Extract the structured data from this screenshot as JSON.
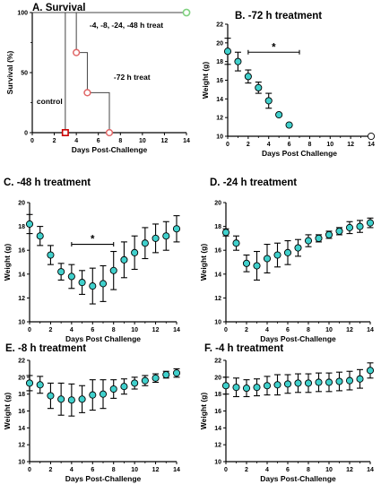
{
  "chart_data": [
    {
      "id": "A",
      "type": "line",
      "title": "A. Survival",
      "xlabel": "Days Post-Challenge",
      "ylabel": "Survival (%)",
      "xlim": [
        0,
        14
      ],
      "ylim": [
        0,
        100
      ],
      "xticks": [
        0,
        2,
        4,
        6,
        8,
        10,
        12,
        14
      ],
      "yticks": [
        0,
        50,
        100
      ],
      "series": [
        {
          "name": "-4, -8, -24, -48 h treat",
          "color": "#7fd17f",
          "x": [
            0,
            14
          ],
          "y": [
            100,
            100
          ]
        },
        {
          "name": "-72 h treat",
          "color": "#e06666",
          "x": [
            0,
            4,
            5,
            7
          ],
          "y": [
            100,
            66.7,
            33.3,
            0
          ]
        },
        {
          "name": "control",
          "color": "#cc0000",
          "x": [
            0,
            3
          ],
          "y": [
            100,
            0
          ]
        }
      ]
    },
    {
      "id": "B",
      "type": "scatter",
      "title": "B. -72 h treatment",
      "xlabel": "Days Post  Challenge",
      "ylabel": "Weight (g)",
      "xlim": [
        0,
        14
      ],
      "ylim": [
        10,
        22
      ],
      "xticks": [
        0,
        2,
        4,
        6,
        8,
        10,
        12,
        14
      ],
      "yticks": [
        10,
        12,
        14,
        16,
        18,
        20,
        22
      ],
      "x": [
        0,
        1,
        2,
        3,
        4,
        5,
        6,
        14
      ],
      "y": [
        19.1,
        18.0,
        16.4,
        15.2,
        13.8,
        12.3,
        11.2,
        10.0
      ],
      "err": [
        1.4,
        1.0,
        0.7,
        0.6,
        0.8,
        0,
        0,
        0
      ],
      "significance": {
        "label": "*",
        "x": [
          2,
          7
        ],
        "y": 19
      }
    },
    {
      "id": "C",
      "type": "scatter",
      "title": "C. -48 h treatment",
      "xlabel": "Days Post Challenge",
      "ylabel": "Weight (g)",
      "xlim": [
        0,
        14
      ],
      "ylim": [
        10,
        20
      ],
      "xticks": [
        0,
        2,
        4,
        6,
        8,
        10,
        12,
        14
      ],
      "yticks": [
        10,
        12,
        14,
        16,
        18,
        20
      ],
      "x": [
        0,
        1,
        2,
        3,
        4,
        5,
        6,
        7,
        8,
        9,
        10,
        11,
        12,
        13,
        14
      ],
      "y": [
        18.2,
        17.2,
        15.6,
        14.2,
        13.8,
        13.3,
        13.0,
        13.2,
        14.3,
        15.2,
        15.8,
        16.6,
        17.0,
        17.2,
        17.8
      ],
      "err": [
        0.8,
        0.8,
        0.8,
        0.7,
        1.0,
        1.0,
        1.5,
        1.5,
        1.6,
        1.5,
        1.4,
        1.3,
        1.2,
        1.2,
        1.1
      ],
      "significance": {
        "label": "*",
        "x": [
          4,
          8
        ],
        "y": 16.5
      }
    },
    {
      "id": "D",
      "type": "scatter",
      "title": "D. -24 h treatment",
      "xlabel": "Days Post-Challenge",
      "ylabel": "Weight (g)",
      "xlim": [
        0,
        14
      ],
      "ylim": [
        10,
        20
      ],
      "xticks": [
        0,
        2,
        4,
        6,
        8,
        10,
        12,
        14
      ],
      "yticks": [
        10,
        12,
        14,
        16,
        18,
        20
      ],
      "x": [
        0,
        1,
        2,
        3,
        4,
        5,
        6,
        7,
        8,
        9,
        10,
        11,
        12,
        13,
        14
      ],
      "y": [
        17.5,
        16.6,
        14.9,
        14.7,
        15.3,
        15.6,
        15.8,
        16.2,
        16.8,
        17.0,
        17.3,
        17.6,
        17.9,
        18.0,
        18.3
      ],
      "err": [
        0.3,
        0.6,
        0.7,
        1.2,
        1.2,
        1.0,
        1.0,
        0.7,
        0.5,
        0.3,
        0.3,
        0.3,
        0.5,
        0.5,
        0.4
      ]
    },
    {
      "id": "E",
      "type": "scatter",
      "title": "E. -8 h treatment",
      "xlabel": "Days Post-Challenge",
      "ylabel": "Weight (g)",
      "xlim": [
        0,
        14
      ],
      "ylim": [
        10,
        22
      ],
      "xticks": [
        0,
        2,
        4,
        6,
        8,
        10,
        12,
        14
      ],
      "yticks": [
        10,
        12,
        14,
        16,
        18,
        20,
        22
      ],
      "x": [
        0,
        1,
        2,
        3,
        4,
        5,
        6,
        7,
        8,
        9,
        10,
        11,
        12,
        13,
        14
      ],
      "y": [
        19.3,
        19.1,
        17.8,
        17.4,
        17.3,
        17.4,
        17.9,
        18.0,
        18.6,
        18.9,
        19.3,
        19.6,
        19.9,
        20.3,
        20.5
      ],
      "err": [
        0.9,
        1.0,
        1.5,
        1.9,
        1.9,
        1.6,
        1.8,
        1.7,
        1.1,
        0.9,
        0.7,
        0.6,
        0.5,
        0.4,
        0.5
      ]
    },
    {
      "id": "F",
      "type": "scatter",
      "title": "F. -4 h treatment",
      "xlabel": "Days Post-Challenge",
      "ylabel": "Weight (g)",
      "xlim": [
        0,
        14
      ],
      "ylim": [
        10,
        22
      ],
      "xticks": [
        0,
        2,
        4,
        6,
        8,
        10,
        12,
        14
      ],
      "yticks": [
        10,
        12,
        14,
        16,
        18,
        20,
        22
      ],
      "x": [
        0,
        1,
        2,
        3,
        4,
        5,
        6,
        7,
        8,
        9,
        10,
        11,
        12,
        13,
        14
      ],
      "y": [
        19.0,
        18.8,
        18.7,
        18.8,
        19.0,
        19.1,
        19.2,
        19.3,
        19.3,
        19.4,
        19.4,
        19.5,
        19.6,
        19.8,
        20.8
      ],
      "err": [
        1.0,
        1.1,
        1.0,
        1.0,
        1.1,
        1.2,
        1.1,
        1.1,
        1.1,
        1.1,
        1.1,
        1.1,
        1.1,
        1.1,
        0.9
      ]
    }
  ],
  "marker_color": "#40d0cc"
}
